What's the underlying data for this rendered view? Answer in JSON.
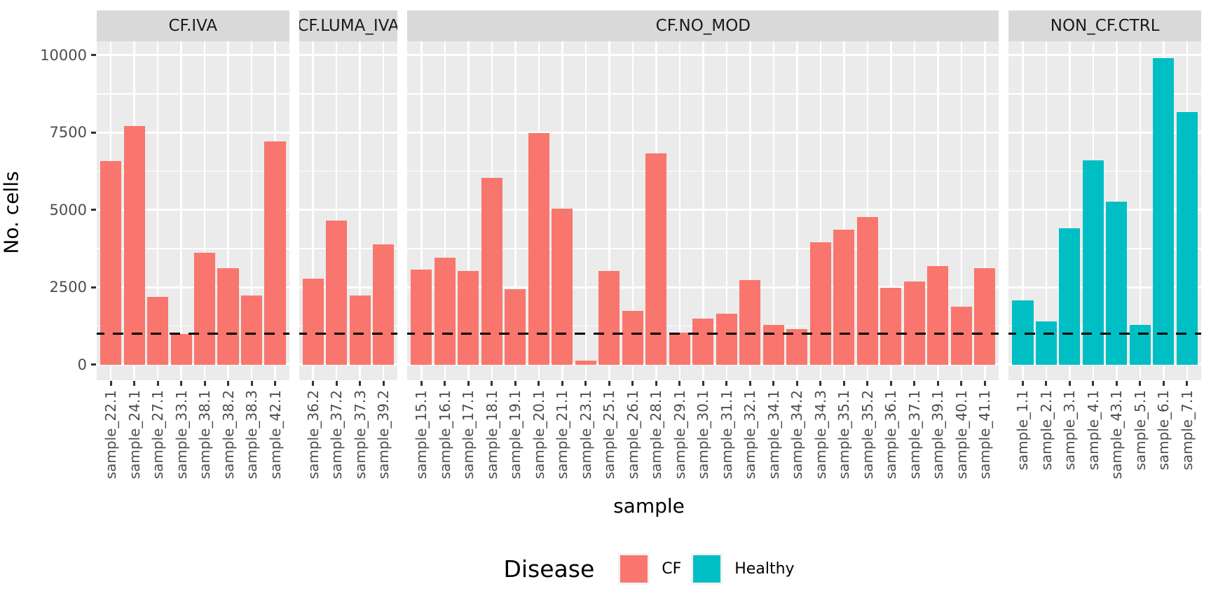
{
  "chart_data": {
    "type": "bar",
    "title": "",
    "ylabel": "No. cells",
    "xlabel": "sample",
    "ylim": [
      0,
      10000
    ],
    "yticks": [
      0,
      2500,
      5000,
      7500,
      10000
    ],
    "minor_gridlines": [
      1250,
      3750,
      6250,
      8750
    ],
    "grid": true,
    "reference_line": {
      "y": 1000,
      "style": "dashed",
      "color": "#000000"
    },
    "colors": {
      "CF": "#F8766D",
      "Healthy": "#00BFC4",
      "panel_background": "#EBEBEB",
      "strip_background": "#D9D9D9"
    },
    "legend": {
      "title": "Disease",
      "position": "bottom",
      "entries": [
        {
          "label": "CF",
          "color": "#F8766D"
        },
        {
          "label": "Healthy",
          "color": "#00BFC4"
        }
      ]
    },
    "facets": [
      {
        "label": "CF.IVA",
        "disease": "CF",
        "categories": [
          "sample_22.1",
          "sample_24.1",
          "sample_27.1",
          "sample_33.1",
          "sample_38.1",
          "sample_38.2",
          "sample_38.3",
          "sample_42.1"
        ],
        "values": [
          6590,
          7720,
          2190,
          1000,
          3610,
          3110,
          2240,
          7220
        ]
      },
      {
        "label": "CF.LUMA_IVA",
        "disease": "CF",
        "categories": [
          "sample_36.2",
          "sample_37.2",
          "sample_37.3",
          "sample_39.2"
        ],
        "values": [
          2790,
          4660,
          2240,
          3890
        ]
      },
      {
        "label": "CF.NO_MOD",
        "disease": "CF",
        "categories": [
          "sample_15.1",
          "sample_16.1",
          "sample_17.1",
          "sample_18.1",
          "sample_19.1",
          "sample_20.1",
          "sample_21.1",
          "sample_23.1",
          "sample_25.1",
          "sample_26.1",
          "sample_28.1",
          "sample_29.1",
          "sample_30.1",
          "sample_31.1",
          "sample_32.1",
          "sample_34.1",
          "sample_34.2",
          "sample_34.3",
          "sample_35.1",
          "sample_35.2",
          "sample_36.1",
          "sample_37.1",
          "sample_39.1",
          "sample_40.1",
          "sample_41.1"
        ],
        "values": [
          3070,
          3470,
          3040,
          6030,
          2440,
          7480,
          5050,
          130,
          3040,
          1750,
          6830,
          1030,
          1500,
          1650,
          2730,
          1280,
          1160,
          3960,
          4370,
          4780,
          2490,
          2690,
          3180,
          1880,
          3130
        ]
      },
      {
        "label": "NON_CF.CTRL",
        "disease": "Healthy",
        "categories": [
          "sample_1.1",
          "sample_2.1",
          "sample_3.1",
          "sample_4.1",
          "sample_43.1",
          "sample_5.1",
          "sample_6.1",
          "sample_7.1"
        ],
        "values": [
          2080,
          1400,
          4400,
          6610,
          5280,
          1280,
          9900,
          8170
        ]
      }
    ]
  }
}
